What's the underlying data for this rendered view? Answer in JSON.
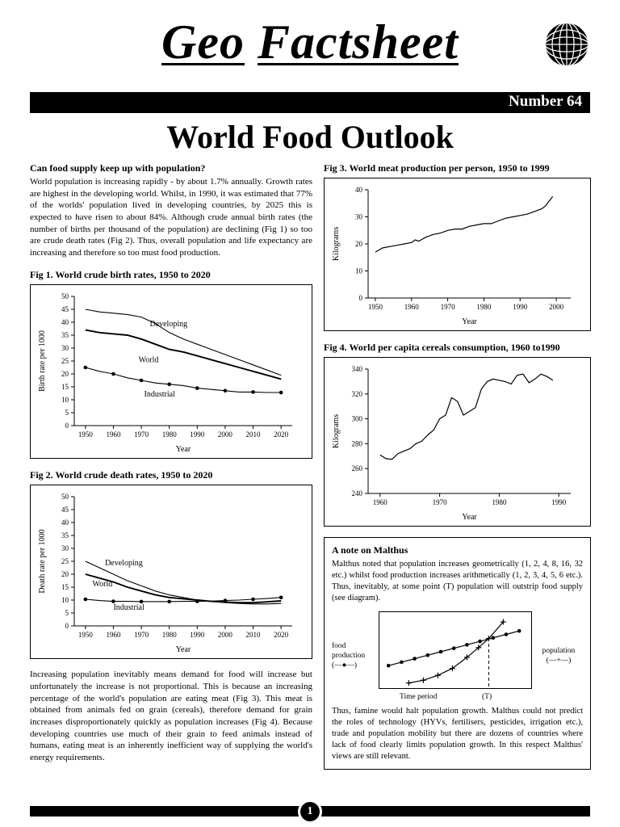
{
  "header": {
    "brand_word1": "Geo",
    "brand_word2": "Factsheet",
    "issue": "Number 64"
  },
  "title": "World Food Outlook",
  "intro": {
    "heading": "Can food supply keep up with population?",
    "body": "World population is increasing rapidly - by about 1.7% annually. Growth rates are highest in the developing world. Whilst, in 1990, it was estimated that 77% of the worlds' population lived in developing countries, by 2025 this is expected to have risen to about 84%. Although crude annual birth rates (the number of births per thousand of the population) are declining (Fig 1) so too are crude death rates (Fig 2). Thus, overall population and life expectancy are increasing and therefore so too must food production."
  },
  "closing": "Increasing population inevitably means demand for food will increase but unfortunately the increase is not proportional. This is because an increasing percentage of the world's population are eating meat (Fig 3). This meat is obtained from animals fed on grain (cereals), therefore demand for grain increases disproportionately quickly as population increases (Fig 4). Because developing countries use much of their grain to feed animals instead of humans, eating meat is an inherently inefficient way of supplying the world's energy requirements.",
  "malthus": {
    "heading": "A note on Malthus",
    "body": "Malthus noted that population increases geometrically (1, 2, 4, 8, 16, 32 etc.) whilst food production increases arithmetically (1, 2, 3, 4, 5, 6 etc.). Thus, inevitably, at some point (T) population will outstrip food supply (see diagram).",
    "diagram": {
      "food_line1": "food",
      "food_line2": "production",
      "food_symbol": "(—●—)",
      "pop_line1": "population",
      "pop_symbol": "(—+—)",
      "time_label": "Time period",
      "t_label": "(T)"
    },
    "after": "Thus, famine would halt population growth. Malthus could not predict the roles of technology (HYVs, fertilisers, pesticides, irrigation etc.), trade and population mobility but there are dozens of countries where lack of food clearly limits population growth. In this respect Malthus' views are still relevant."
  },
  "footer": {
    "page": "1"
  },
  "colors": {
    "ink": "#000000",
    "paper": "#ffffff"
  },
  "chart_data": [
    {
      "id": "fig1",
      "type": "line",
      "title": "Fig 1. World crude birth rates, 1950 to 2020",
      "xlabel": "Year",
      "ylabel": "Birth rate per 1000",
      "xlim": [
        1946,
        2024
      ],
      "ylim": [
        0,
        50
      ],
      "xticks": [
        1950,
        1960,
        1970,
        1980,
        1990,
        2000,
        2010,
        2020
      ],
      "yticks": [
        0,
        5,
        10,
        15,
        20,
        25,
        30,
        35,
        40,
        45,
        50
      ],
      "series": [
        {
          "name": "Developing",
          "label": "Developing",
          "label_x": 1973,
          "label_y": 38.5,
          "width": 1.1,
          "marker": "none",
          "x": [
            1950,
            1955,
            1960,
            1965,
            1970,
            1975,
            1980,
            1985,
            1990,
            1995,
            2000,
            2005,
            2010,
            2015,
            2020
          ],
          "y": [
            45,
            44,
            43.5,
            43,
            42,
            39.5,
            36,
            33.5,
            31.5,
            29.5,
            27.5,
            25.5,
            23.5,
            21.5,
            19.5
          ]
        },
        {
          "name": "World",
          "label": "World",
          "label_x": 1969,
          "label_y": 24.5,
          "width": 1.9,
          "marker": "none",
          "x": [
            1950,
            1955,
            1960,
            1965,
            1970,
            1975,
            1980,
            1985,
            1990,
            1995,
            2000,
            2005,
            2010,
            2015,
            2020
          ],
          "y": [
            37,
            36,
            35.5,
            35,
            33.5,
            31.5,
            29.5,
            28.5,
            27,
            25.5,
            24,
            22.5,
            21,
            19.5,
            18
          ]
        },
        {
          "name": "Industrial",
          "label": "Industrial",
          "label_x": 1971,
          "label_y": 11.2,
          "width": 1.1,
          "marker": "dot",
          "marker_step": 2,
          "x": [
            1950,
            1955,
            1960,
            1965,
            1970,
            1975,
            1980,
            1985,
            1990,
            1995,
            2000,
            2005,
            2010,
            2015,
            2020
          ],
          "y": [
            22.5,
            21,
            20,
            18.5,
            17.5,
            16.5,
            16,
            15.5,
            14.5,
            14,
            13.5,
            13,
            13,
            12.8,
            12.8
          ]
        }
      ]
    },
    {
      "id": "fig2",
      "type": "line",
      "title": "Fig 2. World crude death rates, 1950 to 2020",
      "xlabel": "Year",
      "ylabel": "Death rate per 1000",
      "xlim": [
        1946,
        2024
      ],
      "ylim": [
        0,
        50
      ],
      "xticks": [
        1950,
        1960,
        1970,
        1980,
        1990,
        2000,
        2010,
        2020
      ],
      "yticks": [
        0,
        5,
        10,
        15,
        20,
        25,
        30,
        35,
        40,
        45,
        50
      ],
      "series": [
        {
          "name": "Developing",
          "label": "Developing",
          "label_x": 1957,
          "label_y": 23.5,
          "width": 1.1,
          "marker": "none",
          "x": [
            1950,
            1955,
            1960,
            1965,
            1970,
            1975,
            1980,
            1985,
            1990,
            1995,
            2000,
            2005,
            2010,
            2015,
            2020
          ],
          "y": [
            25,
            22.5,
            20,
            17.5,
            15.5,
            13.5,
            12,
            11,
            10,
            9.5,
            9,
            8.7,
            8.5,
            8.5,
            8.7
          ]
        },
        {
          "name": "World",
          "label": "World",
          "label_x": 1952.5,
          "label_y": 15.3,
          "width": 1.9,
          "marker": "none",
          "x": [
            1950,
            1955,
            1960,
            1965,
            1970,
            1975,
            1980,
            1985,
            1990,
            1995,
            2000,
            2005,
            2010,
            2015,
            2020
          ],
          "y": [
            20,
            18.5,
            17,
            15,
            13.5,
            12,
            11,
            10.5,
            10,
            9.5,
            9.2,
            9,
            9,
            9.3,
            9.7
          ]
        },
        {
          "name": "Industrial",
          "label": "Industrial",
          "label_x": 1960,
          "label_y": 6.2,
          "width": 1.1,
          "marker": "dot",
          "marker_step": 2,
          "x": [
            1950,
            1955,
            1960,
            1965,
            1970,
            1975,
            1980,
            1985,
            1990,
            1995,
            2000,
            2005,
            2010,
            2015,
            2020
          ],
          "y": [
            10.3,
            9.8,
            9.5,
            9.5,
            9.4,
            9.4,
            9.4,
            9.5,
            9.5,
            9.6,
            9.8,
            10,
            10.3,
            10.6,
            11
          ]
        }
      ]
    },
    {
      "id": "fig3",
      "type": "line",
      "title": "Fig 3. World meat production per person, 1950 to 1999",
      "xlabel": "Year",
      "ylabel": "Kilograms",
      "xlim": [
        1948,
        2004
      ],
      "ylim": [
        0,
        40
      ],
      "xticks": [
        1950,
        1960,
        1970,
        1980,
        1990,
        2000
      ],
      "yticks": [
        0,
        10,
        20,
        30,
        40
      ],
      "series": [
        {
          "name": "Meat production",
          "width": 1.2,
          "marker": "none",
          "x": [
            1950,
            1952,
            1954,
            1956,
            1958,
            1960,
            1961,
            1962,
            1964,
            1966,
            1968,
            1970,
            1972,
            1974,
            1976,
            1978,
            1980,
            1982,
            1984,
            1986,
            1988,
            1990,
            1992,
            1994,
            1996,
            1997,
            1999
          ],
          "y": [
            17,
            18.5,
            19,
            19.5,
            20,
            20.5,
            21.5,
            21,
            22.5,
            23.5,
            24,
            25,
            25.5,
            25.5,
            26.5,
            27,
            27.5,
            27.5,
            28.5,
            29.5,
            30,
            30.5,
            31,
            32,
            33,
            34,
            37.5
          ]
        }
      ]
    },
    {
      "id": "fig4",
      "type": "line",
      "title": "Fig 4. World per capita cereals consumption, 1960 to1990",
      "xlabel": "Year",
      "ylabel": "Kilograms",
      "xlim": [
        1958,
        1992
      ],
      "ylim": [
        240,
        340
      ],
      "xticks": [
        1960,
        1970,
        1980,
        1990
      ],
      "yticks": [
        240,
        260,
        280,
        300,
        320,
        340
      ],
      "series": [
        {
          "name": "Cereals consumption",
          "width": 1.2,
          "marker": "none",
          "x": [
            1960,
            1961,
            1962,
            1963,
            1964,
            1965,
            1966,
            1967,
            1968,
            1969,
            1970,
            1971,
            1972,
            1973,
            1974,
            1975,
            1976,
            1977,
            1978,
            1979,
            1980,
            1981,
            1982,
            1983,
            1984,
            1985,
            1986,
            1987,
            1988,
            1989
          ],
          "y": [
            271,
            268,
            267.5,
            272,
            274,
            276,
            280,
            282,
            287,
            291,
            300,
            303,
            317,
            314,
            303,
            306,
            309,
            324,
            330,
            332,
            331,
            330,
            328,
            335,
            336,
            329,
            332,
            336,
            334,
            331
          ]
        }
      ]
    },
    {
      "id": "malthus",
      "type": "line",
      "title": "Malthus diagram: food production vs population over time",
      "xlabel": "Time period",
      "ylabel": "",
      "axes": false,
      "xlim": [
        0,
        10
      ],
      "ylim": [
        0,
        10
      ],
      "xticks": [],
      "yticks": [],
      "margin": {
        "l": 4,
        "r": 6,
        "t": 6,
        "b": 4
      },
      "vlines": [
        {
          "x": 7.3,
          "y0": 0,
          "y1": 6.9,
          "dash": "4 3"
        }
      ],
      "series": [
        {
          "name": "food production",
          "width": 1.2,
          "marker": "dot",
          "x": [
            0.4,
            1.3,
            2.2,
            3.1,
            4.0,
            4.9,
            5.8,
            6.7,
            7.6,
            8.5,
            9.4
          ],
          "y": [
            3.0,
            3.5,
            4.0,
            4.5,
            5.0,
            5.5,
            6.0,
            6.5,
            7.0,
            7.5,
            8.0
          ]
        },
        {
          "name": "population",
          "width": 1.2,
          "marker": "plus",
          "x": [
            1.8,
            2.8,
            3.8,
            4.8,
            5.8,
            6.6,
            7.3,
            8.3
          ],
          "y": [
            0.5,
            0.9,
            1.6,
            2.6,
            4.2,
            5.6,
            6.9,
            9.3
          ]
        }
      ]
    }
  ]
}
